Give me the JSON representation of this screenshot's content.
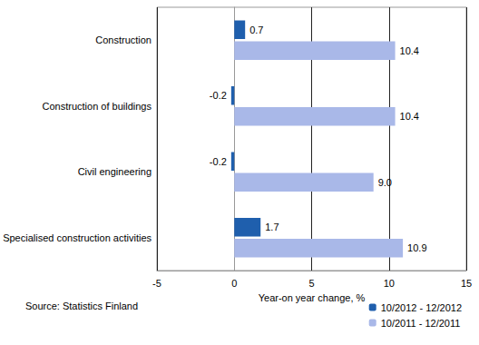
{
  "chart_data": {
    "type": "bar",
    "orientation": "horizontal",
    "categories": [
      "Construction",
      "Construction of buildings",
      "Civil engineering",
      "Specialised construction activities"
    ],
    "series": [
      {
        "name": "10/2012 - 12/2012",
        "color": "#1f5fad",
        "values": [
          0.7,
          -0.2,
          -0.2,
          1.7
        ]
      },
      {
        "name": "10/2011 - 12/2011",
        "color": "#a9b8e8",
        "values": [
          10.4,
          10.4,
          9.0,
          10.9
        ],
        "value_labels": [
          "10.4",
          "10.4",
          "9.0",
          "10.9"
        ]
      }
    ],
    "xlabel": "Year-on year change, %",
    "xlim": [
      -5,
      15
    ],
    "xticks": [
      -5,
      0,
      5,
      10,
      15
    ],
    "grid": true,
    "legend": "lower right",
    "data_labels": true,
    "annotations": [
      "Source: Statistics Finland"
    ]
  }
}
